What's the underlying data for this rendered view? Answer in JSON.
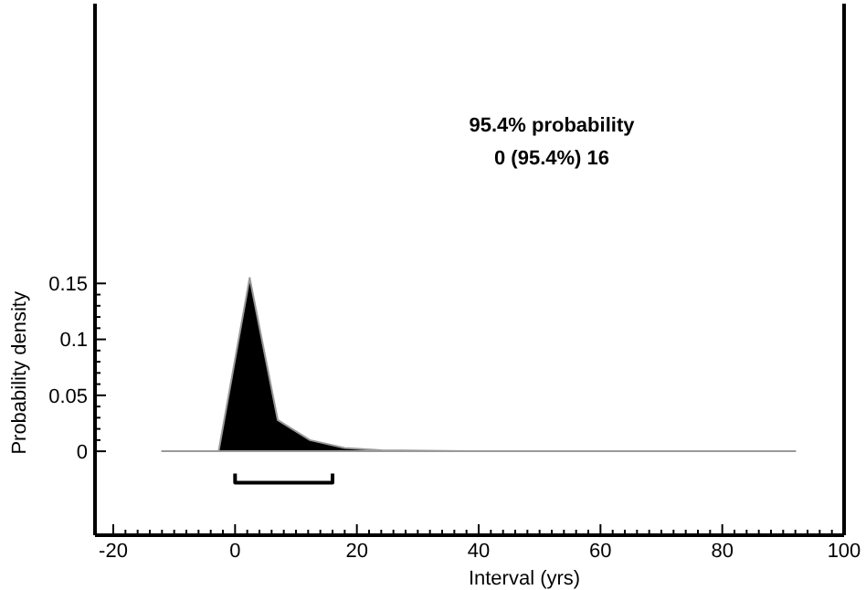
{
  "chart_data": {
    "type": "area",
    "xlabel": "Interval (yrs)",
    "ylabel": "Probability density",
    "annotations": [
      "95.4% probability",
      "0 (95.4%) 16"
    ],
    "series": [
      {
        "color": "#000000",
        "x": [
          -12,
          -2.7,
          2.4,
          7,
          12.3,
          18,
          24,
          40,
          92
        ],
        "values": [
          0,
          0,
          0.155,
          0.028,
          0.01,
          0.003,
          0.001,
          0,
          0
        ]
      },
      {
        "type": "line",
        "color": "#000000",
        "x": [
          0,
          0,
          16,
          16
        ],
        "values": [
          -0.02,
          -0.028,
          -0.028,
          -0.02
        ]
      }
    ],
    "xlim": [
      -23,
      100
    ],
    "ylim": [
      -0.075,
      0.4
    ],
    "xticks": [
      {
        "value": -20,
        "label": "-20"
      },
      {
        "value": -18,
        "label": null
      },
      {
        "value": -16,
        "label": null
      },
      {
        "value": -14,
        "label": null
      },
      {
        "value": -12,
        "label": null
      },
      {
        "value": -10,
        "label": null
      },
      {
        "value": -8,
        "label": null
      },
      {
        "value": -6,
        "label": null
      },
      {
        "value": -4,
        "label": null
      },
      {
        "value": -2,
        "label": null
      },
      0,
      {
        "value": 2,
        "label": null
      },
      {
        "value": 4,
        "label": null
      },
      {
        "value": 6,
        "label": null
      },
      {
        "value": 8,
        "label": null
      },
      {
        "value": 10,
        "label": null
      },
      {
        "value": 12,
        "label": null
      },
      {
        "value": 14,
        "label": null
      },
      {
        "value": 16,
        "label": null
      },
      {
        "value": 18,
        "label": null
      },
      20,
      {
        "value": 22,
        "label": null
      },
      {
        "value": 24,
        "label": null
      },
      {
        "value": 26,
        "label": null
      },
      {
        "value": 28,
        "label": null
      },
      {
        "value": 30,
        "label": null
      },
      {
        "value": 32,
        "label": null
      },
      {
        "value": 34,
        "label": null
      },
      {
        "value": 36,
        "label": null
      },
      {
        "value": 38,
        "label": null
      },
      40,
      {
        "value": 42,
        "label": null
      },
      {
        "value": 44,
        "label": null
      },
      {
        "value": 46,
        "label": null
      },
      {
        "value": 48,
        "label": null
      },
      {
        "value": 50,
        "label": null
      },
      {
        "value": 52,
        "label": null
      },
      {
        "value": 54,
        "label": null
      },
      {
        "value": 56,
        "label": null
      },
      {
        "value": 58,
        "label": null
      },
      60,
      {
        "value": 62,
        "label": null
      },
      {
        "value": 64,
        "label": null
      },
      {
        "value": 66,
        "label": null
      },
      {
        "value": 68,
        "label": null
      },
      {
        "value": 70,
        "label": null
      },
      {
        "value": 72,
        "label": null
      },
      {
        "value": 74,
        "label": null
      },
      {
        "value": 76,
        "label": null
      },
      {
        "value": 78,
        "label": null
      },
      80,
      {
        "value": 82,
        "label": null
      },
      {
        "value": 84,
        "label": null
      },
      {
        "value": 86,
        "label": null
      },
      {
        "value": 88,
        "label": null
      },
      {
        "value": 90,
        "label": null
      },
      {
        "value": 92,
        "label": null
      },
      {
        "value": 94,
        "label": null
      },
      {
        "value": 96,
        "label": null
      },
      {
        "value": 98,
        "label": null
      },
      100
    ],
    "yticks": [
      0,
      {
        "value": 0.01,
        "label": null
      },
      {
        "value": 0.02,
        "label": null
      },
      {
        "value": 0.03,
        "label": null
      },
      {
        "value": 0.04,
        "label": null
      },
      0.05,
      {
        "value": 0.06,
        "label": null
      },
      {
        "value": 0.07,
        "label": null
      },
      {
        "value": 0.08,
        "label": null
      },
      {
        "value": 0.09,
        "label": null
      },
      0.1,
      {
        "value": 0.11,
        "label": null
      },
      {
        "value": 0.12,
        "label": null
      },
      {
        "value": 0.13,
        "label": null
      },
      {
        "value": 0.14,
        "label": null
      },
      0.15
    ],
    "grid": false
  }
}
